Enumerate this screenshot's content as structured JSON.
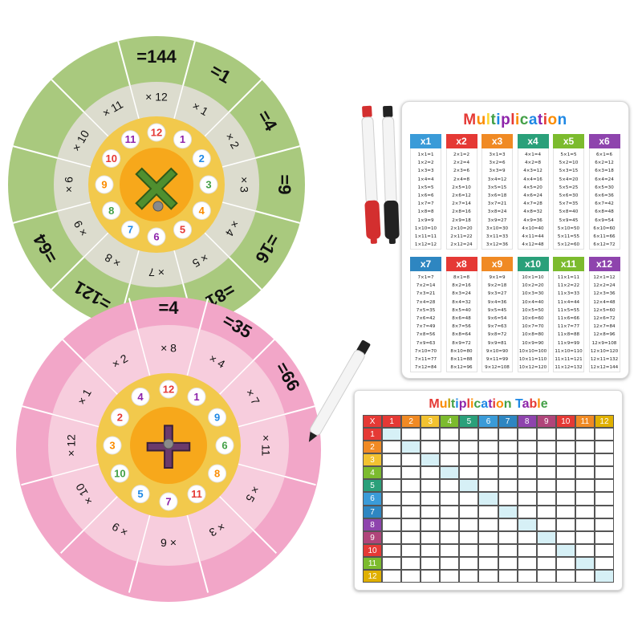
{
  "multiplication_card": {
    "title": "Multiplication",
    "title_letter_colors": [
      "#e53935",
      "#fb8c00",
      "#fdd835",
      "#43a047",
      "#1e88e5",
      "#8e24aa",
      "#e53935",
      "#fb8c00",
      "#43a047",
      "#1e88e5",
      "#8e24aa",
      "#e53935",
      "#fb8c00",
      "#1e88e5"
    ],
    "columns": [
      {
        "label": "x1",
        "color": "#3a9bd8"
      },
      {
        "label": "x2",
        "color": "#e53935"
      },
      {
        "label": "x3",
        "color": "#f08a24"
      },
      {
        "label": "x4",
        "color": "#2aa07a"
      },
      {
        "label": "x5",
        "color": "#7cbb2e"
      },
      {
        "label": "x6",
        "color": "#8e44ad"
      },
      {
        "label": "x7",
        "color": "#2e86c1"
      },
      {
        "label": "x8",
        "color": "#e53935"
      },
      {
        "label": "x9",
        "color": "#f08a24"
      },
      {
        "label": "x10",
        "color": "#2aa07a"
      },
      {
        "label": "x11",
        "color": "#7cbb2e"
      },
      {
        "label": "x12",
        "color": "#8e44ad"
      }
    ],
    "facts": [
      [
        "1×1=1",
        "1×2=2",
        "1×3=3",
        "1×4=4",
        "1×5=5",
        "1×6=6",
        "1×7=7",
        "1×8=8",
        "1×9=9",
        "1×10=10",
        "1×11=11",
        "1×12=12"
      ],
      [
        "2×1=2",
        "2×2=4",
        "2×3=6",
        "2×4=8",
        "2×5=10",
        "2×6=12",
        "2×7=14",
        "2×8=16",
        "2×9=18",
        "2×10=20",
        "2×11=22",
        "2×12=24"
      ],
      [
        "3×1=3",
        "3×2=6",
        "3×3=9",
        "3×4=12",
        "3×5=15",
        "3×6=18",
        "3×7=21",
        "3×8=24",
        "3×9=27",
        "3×10=30",
        "3×11=33",
        "3×12=36"
      ],
      [
        "4×1=4",
        "4×2=8",
        "4×3=12",
        "4×4=16",
        "4×5=20",
        "4×6=24",
        "4×7=28",
        "4×8=32",
        "4×9=36",
        "4×10=40",
        "4×11=44",
        "4×12=48"
      ],
      [
        "5×1=5",
        "5×2=10",
        "5×3=15",
        "5×4=20",
        "5×5=25",
        "5×6=30",
        "5×7=35",
        "5×8=40",
        "5×9=45",
        "5×10=50",
        "5×11=55",
        "5×12=60"
      ],
      [
        "6×1=6",
        "6×2=12",
        "6×3=18",
        "6×4=24",
        "6×5=30",
        "6×6=36",
        "6×7=42",
        "6×8=48",
        "6×9=54",
        "6×10=60",
        "6×11=66",
        "6×12=72"
      ],
      [
        "7×1=7",
        "7×2=14",
        "7×3=21",
        "7×4=28",
        "7×5=35",
        "7×6=42",
        "7×7=49",
        "7×8=56",
        "7×9=63",
        "7×10=70",
        "7×11=77",
        "7×12=84"
      ],
      [
        "8×1=8",
        "8×2=16",
        "8×3=24",
        "8×4=32",
        "8×5=40",
        "8×6=48",
        "8×7=56",
        "8×8=64",
        "8×9=72",
        "8×10=80",
        "8×11=88",
        "8×12=96"
      ],
      [
        "9×1=9",
        "9×2=18",
        "9×3=27",
        "9×4=36",
        "9×5=45",
        "9×6=54",
        "9×7=63",
        "9×8=72",
        "9×9=81",
        "9×10=90",
        "9×11=99",
        "9×12=108"
      ],
      [
        "10×1=10",
        "10×2=20",
        "10×3=30",
        "10×4=40",
        "10×5=50",
        "10×6=60",
        "10×7=70",
        "10×8=80",
        "10×9=90",
        "10×10=100",
        "10×11=110",
        "10×12=120"
      ],
      [
        "11×1=11",
        "11×2=22",
        "11×3=33",
        "11×4=44",
        "11×5=55",
        "11×6=66",
        "11×7=77",
        "11×8=88",
        "11×9=99",
        "11×10=110",
        "11×11=121",
        "11×12=132"
      ],
      [
        "12×1=12",
        "12×2=24",
        "12×3=36",
        "12×4=48",
        "12×5=60",
        "12×6=72",
        "12×7=84",
        "12×8=96",
        "12×9=108",
        "12×10=120",
        "12×11=132",
        "12×12=144"
      ]
    ]
  },
  "table_card": {
    "title": "Multiplication Table",
    "title_letter_colors": [
      "#e53935",
      "#fb8c00",
      "#c0a000",
      "#43a047",
      "#1e88e5",
      "#8e24aa",
      "#e53935",
      "#fb8c00",
      "#43a047",
      "#1e88e5",
      "#8e24aa",
      "#e53935",
      "#fb8c00",
      "#43a047",
      "#1e88e5",
      "#8e24aa",
      "#e53935",
      "#fb8c00",
      "#43a047",
      "#1e88e5"
    ],
    "corner_label": "X",
    "corner_color": "#e53935",
    "header_numbers": [
      "1",
      "2",
      "3",
      "4",
      "5",
      "6",
      "7",
      "8",
      "9",
      "10",
      "11",
      "12"
    ],
    "header_colors": [
      "#e53935",
      "#f08a24",
      "#f2c230",
      "#7cbb2e",
      "#2aa07a",
      "#3a9bd8",
      "#2e86c1",
      "#8e44ad",
      "#b0457a",
      "#e53935",
      "#f08a24",
      "#e0b000"
    ],
    "row_colors": [
      "#e53935",
      "#f08a24",
      "#f2c230",
      "#7cbb2e",
      "#2aa07a",
      "#3a9bd8",
      "#2e86c1",
      "#8e44ad",
      "#b0457a",
      "#e53935",
      "#7cbb2e",
      "#e0b000"
    ],
    "diagonal_color": "#d6f0f6"
  },
  "green_wheel": {
    "colors": {
      "outer": "#a9c97e",
      "middle": "#dcdcce",
      "inner": "#f2c94c",
      "symbol": "#4f8f2f"
    },
    "outer_values": [
      "144",
      "1",
      "4",
      "9",
      "16",
      "81",
      "100",
      "121",
      "64"
    ],
    "middle_labels": [
      "× 12",
      "× 1",
      "× 2",
      "× 3",
      "× 4",
      "× 5",
      "× 7",
      "× 8",
      "× 9",
      "× 6",
      "× 10",
      "× 11"
    ],
    "inner_numbers": [
      "12",
      "1",
      "2",
      "3",
      "4",
      "5",
      "6",
      "7",
      "8",
      "9",
      "10",
      "11"
    ],
    "center_symbol": "×"
  },
  "pink_wheel": {
    "colors": {
      "outer": "#f2a6c8",
      "middle": "#f7cddd",
      "inner": "#f2c94c",
      "symbol": "#6b3a6b"
    },
    "outer_values": [
      "4",
      "35",
      "66"
    ],
    "middle_labels": [
      "× 8",
      "× 4",
      "× 7",
      "× 11",
      "× 5",
      "× 3",
      "× 6",
      "× 9",
      "× 10",
      "× 12",
      "× 1",
      "× 2"
    ],
    "inner_numbers": [
      "12",
      "1",
      "9",
      "6",
      "8",
      "11",
      "7",
      "5",
      "10",
      "3",
      "2",
      "4"
    ],
    "center_symbol": "+"
  },
  "markers": {
    "red_cap": "#d32f2f",
    "black_cap": "#222222",
    "body": "#f4f4f4"
  }
}
